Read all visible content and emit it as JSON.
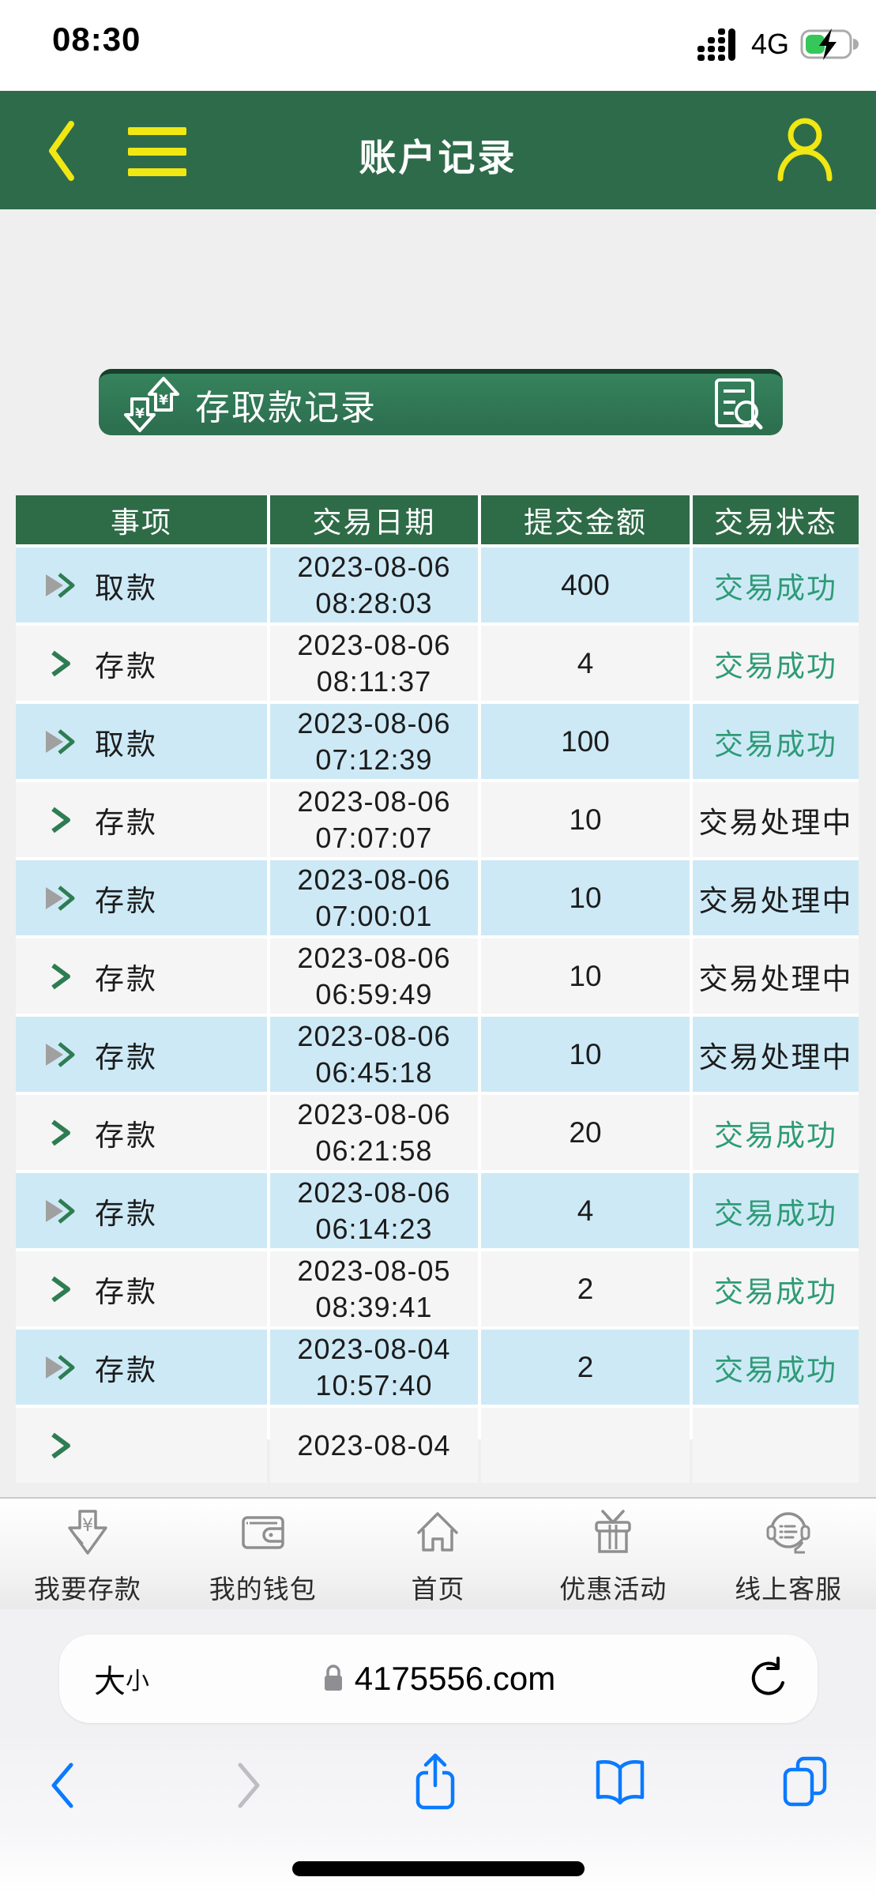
{
  "status_bar": {
    "time": "08:30",
    "network": "4G",
    "signal_icon": "cellular-signal-dots-icon",
    "battery_icon": "battery-charging-icon"
  },
  "header": {
    "title": "账户记录",
    "back_icon": "back-chevron-icon",
    "menu_icon": "hamburger-menu-icon",
    "profile_icon": "person-icon"
  },
  "section": {
    "title": "存取款记录",
    "left_icon": "yen-deposit-withdraw-arrows-icon",
    "right_icon": "record-search-icon"
  },
  "table": {
    "headers": [
      "事项",
      "交易日期",
      "提交金额",
      "交易状态"
    ],
    "rows": [
      {
        "item": "取款",
        "date1": "2023-08-06",
        "date2": "08:28:03",
        "amount": "400",
        "status": "交易成功",
        "ok": true
      },
      {
        "item": "存款",
        "date1": "2023-08-06",
        "date2": "08:11:37",
        "amount": "4",
        "status": "交易成功",
        "ok": true
      },
      {
        "item": "取款",
        "date1": "2023-08-06",
        "date2": "07:12:39",
        "amount": "100",
        "status": "交易成功",
        "ok": true
      },
      {
        "item": "存款",
        "date1": "2023-08-06",
        "date2": "07:07:07",
        "amount": "10",
        "status": "交易处理中",
        "ok": false
      },
      {
        "item": "存款",
        "date1": "2023-08-06",
        "date2": "07:00:01",
        "amount": "10",
        "status": "交易处理中",
        "ok": false
      },
      {
        "item": "存款",
        "date1": "2023-08-06",
        "date2": "06:59:49",
        "amount": "10",
        "status": "交易处理中",
        "ok": false
      },
      {
        "item": "存款",
        "date1": "2023-08-06",
        "date2": "06:45:18",
        "amount": "10",
        "status": "交易处理中",
        "ok": false
      },
      {
        "item": "存款",
        "date1": "2023-08-06",
        "date2": "06:21:58",
        "amount": "20",
        "status": "交易成功",
        "ok": true
      },
      {
        "item": "存款",
        "date1": "2023-08-06",
        "date2": "06:14:23",
        "amount": "4",
        "status": "交易成功",
        "ok": true
      },
      {
        "item": "存款",
        "date1": "2023-08-05",
        "date2": "08:39:41",
        "amount": "2",
        "status": "交易成功",
        "ok": true
      },
      {
        "item": "存款",
        "date1": "2023-08-04",
        "date2": "10:57:40",
        "amount": "2",
        "status": "交易成功",
        "ok": true
      },
      {
        "item": "",
        "date1": "2023-08-04",
        "date2": "",
        "amount": "",
        "status": "",
        "ok": false
      }
    ]
  },
  "bottom_nav": {
    "items": [
      {
        "label": "我要存款",
        "icon": "deposit-icon"
      },
      {
        "label": "我的钱包",
        "icon": "wallet-icon"
      },
      {
        "label": "首页",
        "icon": "home-icon"
      },
      {
        "label": "优惠活动",
        "icon": "gift-icon"
      },
      {
        "label": "线上客服",
        "icon": "customer-service-icon"
      }
    ]
  },
  "browser": {
    "text_size_big": "大",
    "text_size_small": "小",
    "url": "4175556.com",
    "lock_icon": "padlock-icon",
    "reload_icon": "reload-icon",
    "toolbar_icons": [
      "back-icon",
      "forward-icon",
      "share-icon",
      "bookmarks-icon",
      "tabs-icon"
    ]
  },
  "colors": {
    "header_green": "#2e6b4a",
    "table_header_green": "#2e6b47",
    "section_green": "#2d7050",
    "accent_yellow": "#f0e713",
    "success_green": "#2f9b77",
    "row_blue": "#cde9f6",
    "row_white": "#f5f5f5",
    "page_gray": "#efefef",
    "ios_blue": "#0a7aff",
    "battery_green": "#35c759"
  }
}
